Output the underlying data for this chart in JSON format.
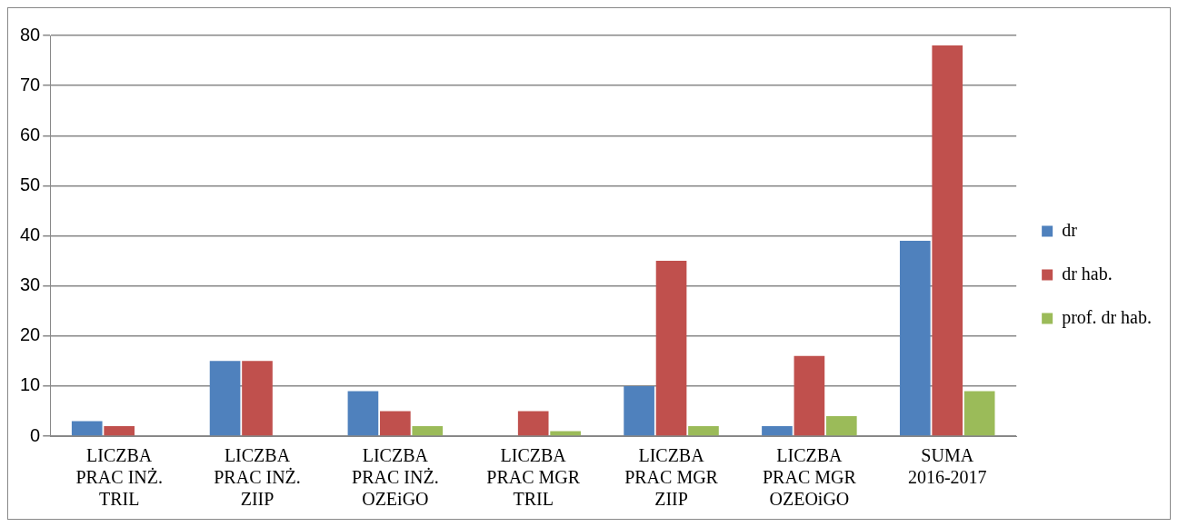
{
  "chart_data": {
    "type": "bar",
    "categories": [
      "LICZBA PRAC INŻ. TRIL",
      "LICZBA PRAC INŻ. ZIIP",
      "LICZBA PRAC INŻ. OZEiGO",
      "LICZBA PRAC MGR TRIL",
      "LICZBA PRAC MGR ZIIP",
      "LICZBA PRAC MGR OZEOiGO",
      "SUMA 2016-2017"
    ],
    "series": [
      {
        "name": "dr",
        "color": "#4f81bd",
        "values": [
          3,
          15,
          9,
          0,
          10,
          2,
          39
        ]
      },
      {
        "name": "dr hab.",
        "color": "#c0504d",
        "values": [
          2,
          15,
          5,
          5,
          35,
          16,
          78
        ]
      },
      {
        "name": "prof. dr hab.",
        "color": "#9bbb59",
        "values": [
          0,
          0,
          2,
          1,
          2,
          4,
          9
        ]
      }
    ],
    "ylim": [
      0,
      80
    ],
    "yticks": [
      0,
      10,
      20,
      30,
      40,
      50,
      60,
      70,
      80
    ],
    "grid": "y",
    "legend": "right"
  }
}
